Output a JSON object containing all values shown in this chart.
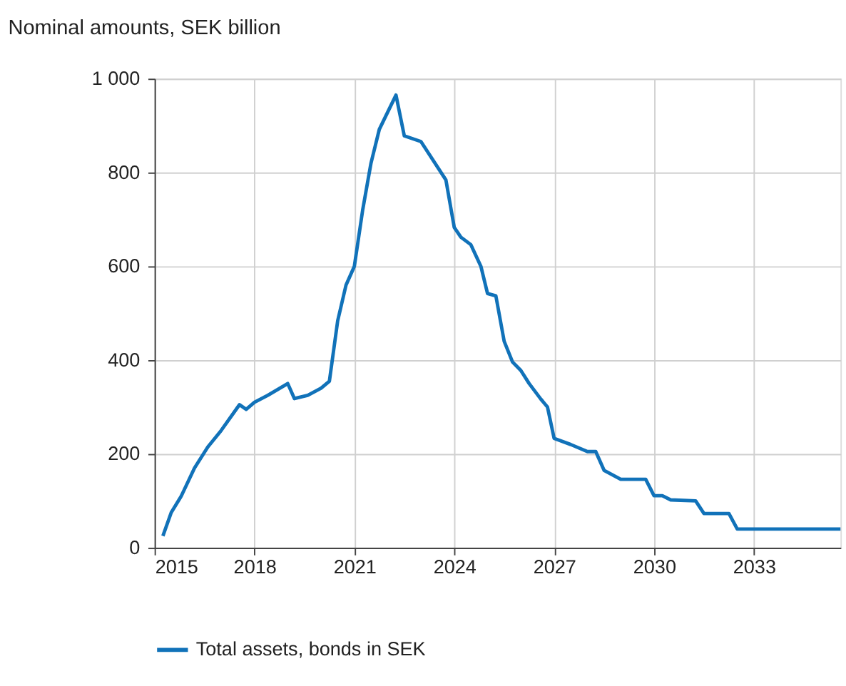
{
  "chart_data": {
    "type": "line",
    "title": "Nominal amounts, SEK billion",
    "x": [
      2015.25,
      2015.5,
      2015.8,
      2016.2,
      2016.6,
      2017.0,
      2017.55,
      2017.75,
      2018.0,
      2018.4,
      2019.0,
      2019.2,
      2019.6,
      2020.0,
      2020.25,
      2020.5,
      2020.75,
      2021.0,
      2021.25,
      2021.5,
      2021.75,
      2022.25,
      2022.5,
      2023.0,
      2023.75,
      2024.0,
      2024.2,
      2024.5,
      2024.8,
      2025.0,
      2025.25,
      2025.5,
      2025.75,
      2026.0,
      2026.25,
      2026.6,
      2026.8,
      2027.0,
      2027.5,
      2028.0,
      2028.25,
      2028.5,
      2029.0,
      2029.75,
      2030.0,
      2030.25,
      2030.5,
      2031.25,
      2031.5,
      2032.25,
      2032.5,
      2035.6
    ],
    "series": [
      {
        "name": "Total assets, bonds in SEK",
        "color": "#1172b9",
        "values": [
          25,
          75,
          110,
          170,
          215,
          250,
          305,
          295,
          310,
          325,
          350,
          318,
          325,
          340,
          355,
          484,
          560,
          600,
          720,
          820,
          892,
          965,
          878,
          866,
          784,
          683,
          662,
          646,
          600,
          542,
          537,
          440,
          396,
          378,
          350,
          317,
          300,
          233,
          220,
          205,
          205,
          165,
          146,
          146,
          111,
          111,
          102,
          100,
          73,
          73,
          40,
          40
        ]
      }
    ],
    "xlim": [
      2015,
      2035.6
    ],
    "xticks": [
      2015,
      2018,
      2021,
      2024,
      2027,
      2030,
      2033
    ],
    "ylim": [
      0,
      1000
    ],
    "yticks": [
      0,
      200,
      400,
      600,
      800,
      {
        "value": 1000,
        "label": "1 000"
      }
    ],
    "grid": true,
    "legend": "bottom",
    "line_style": "solid"
  }
}
